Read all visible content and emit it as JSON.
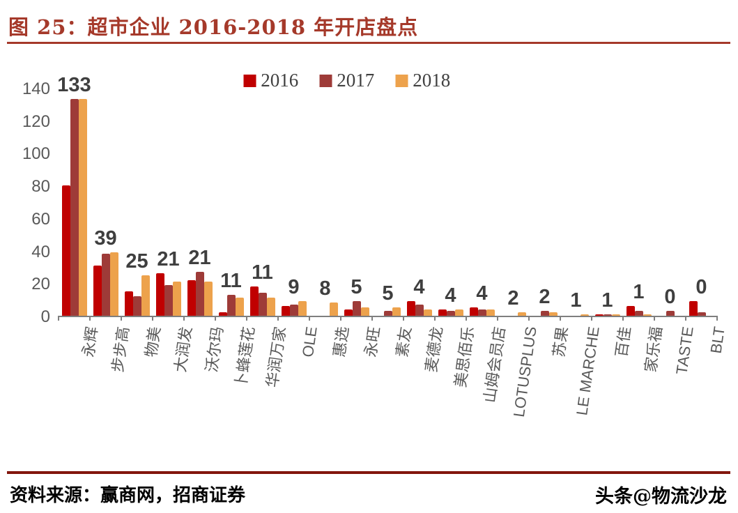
{
  "header": {
    "title": "图 25：超市企业 2016-2018 年开店盘点"
  },
  "footer": {
    "source_note": "资料来源：赢商网，招商证券",
    "watermark": "头条@物流沙龙"
  },
  "colors": {
    "title_red": "#A5392A",
    "footer_rule_red": "#82160D",
    "axis_text": "#595959",
    "axis_line": "#7F7F7F",
    "data_label": "#3F3F3F",
    "series_2016": "#C00000",
    "series_2017": "#9E3B38",
    "series_2018": "#EDA24C"
  },
  "chart_data": {
    "type": "bar",
    "title": "图 25：超市企业 2016-2018 年开店盘点",
    "categories": [
      "永辉",
      "步步高",
      "物美",
      "大润发",
      "沃尔玛",
      "卜蜂莲花",
      "华润万家",
      "OLE",
      "惠选",
      "永旺",
      "素友",
      "麦德龙",
      "美思佰乐",
      "山姆会员店",
      "LOTUSPLUS",
      "苏果",
      "LE MARCHE",
      "百佳",
      "家乐福",
      "TASTE",
      "BLT"
    ],
    "series": [
      {
        "name": "2016",
        "color": "#C00000",
        "values": [
          80,
          31,
          15,
          26,
          22,
          2,
          18,
          6,
          0,
          4,
          0,
          9,
          4,
          5,
          0,
          0,
          0,
          1,
          6,
          0,
          9
        ]
      },
      {
        "name": "2017",
        "color": "#9E3B38",
        "values": [
          133,
          38,
          12,
          19,
          27,
          13,
          14,
          7,
          0,
          9,
          3,
          7,
          3,
          4,
          0,
          3,
          0,
          1,
          3,
          3,
          2
        ]
      },
      {
        "name": "2018",
        "color": "#EDA24C",
        "values": [
          133,
          39,
          25,
          21,
          21,
          11,
          11,
          9,
          8,
          5,
          5,
          4,
          4,
          4,
          2,
          2,
          1,
          1,
          1,
          0,
          0
        ]
      }
    ],
    "data_labels": [
      133,
      39,
      25,
      21,
      21,
      11,
      11,
      9,
      8,
      5,
      5,
      4,
      4,
      4,
      2,
      2,
      1,
      1,
      1,
      0,
      0
    ],
    "data_labels_series": "2018",
    "xlabel": "",
    "ylabel": "",
    "ylim": [
      0,
      140
    ],
    "yticks": [
      0,
      20,
      40,
      60,
      80,
      100,
      120,
      140
    ],
    "grid": false,
    "legend_position": "top-center",
    "legend": [
      "2016",
      "2017",
      "2018"
    ]
  }
}
